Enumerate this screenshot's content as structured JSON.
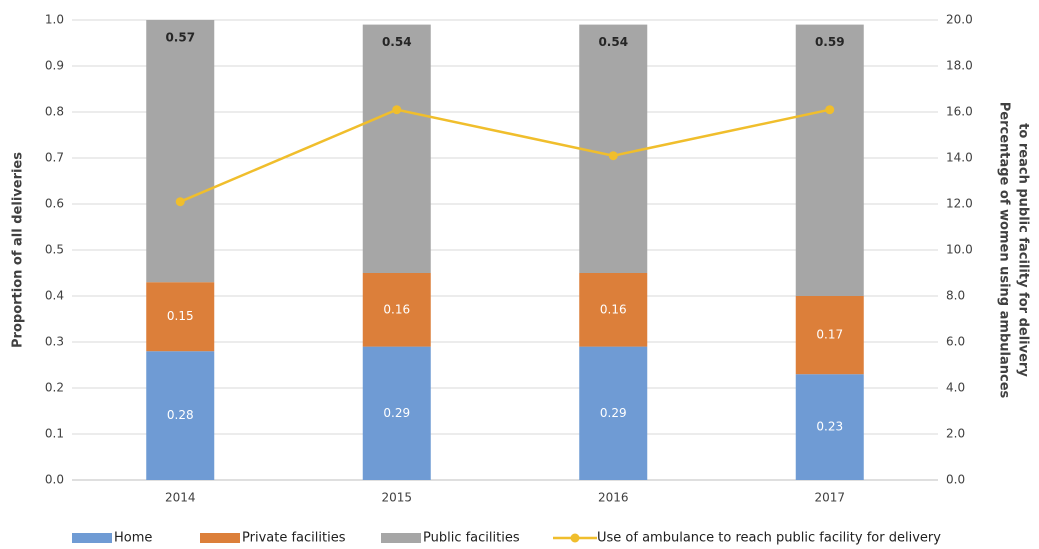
{
  "chart_data": {
    "type": "bar",
    "stacked": true,
    "categories": [
      "2014",
      "2015",
      "2016",
      "2017"
    ],
    "series": [
      {
        "name": "Home",
        "color": "#6f9bd4",
        "values": [
          0.28,
          0.29,
          0.29,
          0.23
        ]
      },
      {
        "name": "Private facilities",
        "color": "#dc7f3a",
        "values": [
          0.15,
          0.16,
          0.16,
          0.17
        ]
      },
      {
        "name": "Public facilities",
        "color": "#a6a6a6",
        "values": [
          0.57,
          0.54,
          0.54,
          0.59
        ]
      },
      {
        "name": "Use of ambulance to reach public facility for delivery",
        "type": "line",
        "axis": "y2",
        "color": "#f0be2c",
        "values": [
          12.1,
          16.1,
          14.1,
          16.1
        ]
      }
    ],
    "y_label": "Proportion of all deliveries",
    "y2_label": [
      "Percentage of women using ambulances",
      "to reach public facility for delivery"
    ],
    "ylim": [
      0,
      1
    ],
    "yticks": [
      {
        "value": 0,
        "label": "0.0"
      },
      {
        "value": 0.1,
        "label": "0.1"
      },
      {
        "value": 0.2,
        "label": "0.2"
      },
      {
        "value": 0.3,
        "label": "0.3"
      },
      {
        "value": 0.4,
        "label": "0.4"
      },
      {
        "value": 0.5,
        "label": "0.5"
      },
      {
        "value": 0.6,
        "label": "0.6"
      },
      {
        "value": 0.7,
        "label": "0.7"
      },
      {
        "value": 0.8,
        "label": "0.8"
      },
      {
        "value": 0.9,
        "label": "0.9"
      },
      {
        "value": 1,
        "label": "1.0"
      }
    ],
    "y2lim": [
      0,
      20
    ],
    "y2ticks": [
      {
        "value": 0,
        "label": "0.0"
      },
      {
        "value": 2,
        "label": "2.0"
      },
      {
        "value": 4,
        "label": "4.0"
      },
      {
        "value": 6,
        "label": "6.0"
      },
      {
        "value": 8,
        "label": "8.0"
      },
      {
        "value": 10,
        "label": "10.0"
      },
      {
        "value": 12,
        "label": "12.0"
      },
      {
        "value": 14,
        "label": "14.0"
      },
      {
        "value": 16,
        "label": "16.0"
      },
      {
        "value": 18,
        "label": "18.0"
      },
      {
        "value": 20,
        "label": "20.0"
      }
    ],
    "grid": true,
    "legend": "bottom"
  }
}
